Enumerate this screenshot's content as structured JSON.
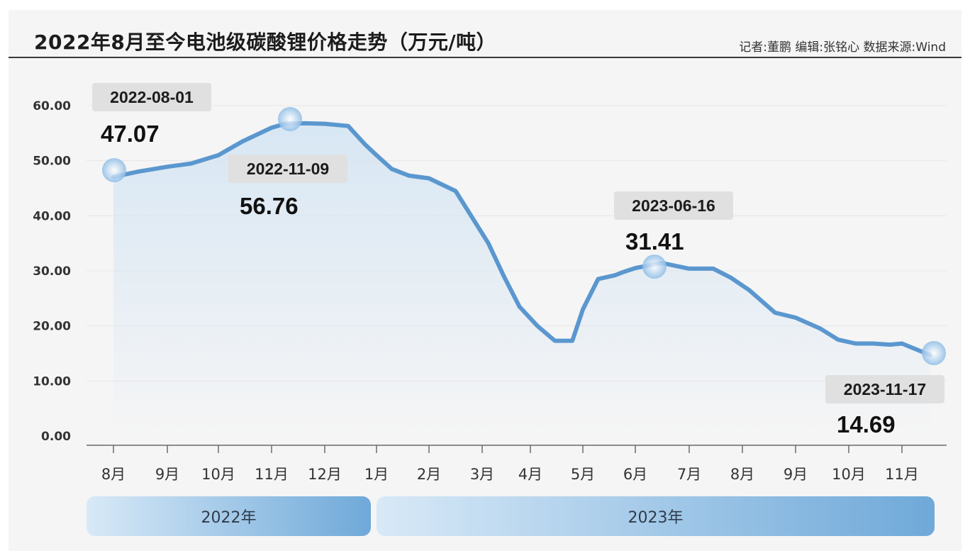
{
  "title": "2022年8月至今电池级碳酸锂价格走势（万元/吨）",
  "credit": "记者:董鹏  编辑:张铭心  数据来源:Wind",
  "colors": {
    "line": "#5b97cf",
    "area_top": "#d6e6f4",
    "marker": "#8fbde6",
    "callout_bg": "#e0e0e0",
    "band_light": "#d8e9f7",
    "band_dark": "#6fa9d9",
    "grid": "#e6e6e6",
    "axis": "#6b6b6b"
  },
  "chart_data": {
    "type": "line",
    "ylim": [
      0,
      60
    ],
    "y_ticks": [
      "0.00",
      "10.00",
      "20.00",
      "30.00",
      "40.00",
      "50.00",
      "60.00"
    ],
    "x_ticks": [
      "8月",
      "9月",
      "10月",
      "11月",
      "12月",
      "1月",
      "2月",
      "3月",
      "4月",
      "5月",
      "6月",
      "7月",
      "8月",
      "9月",
      "10月",
      "11月"
    ],
    "year_bands": [
      "2022年",
      "2023年"
    ],
    "grid": true,
    "series": [
      {
        "x": [
          "2022-08-01",
          "2022-08-15",
          "2022-09-01",
          "2022-09-15",
          "2022-10-01",
          "2022-10-15",
          "2022-11-01",
          "2022-11-09",
          "2022-11-20",
          "2022-12-01",
          "2022-12-15",
          "2022-12-25",
          "2023-01-01",
          "2023-01-10",
          "2023-01-20",
          "2023-02-01",
          "2023-02-15",
          "2023-02-25",
          "2023-03-05",
          "2023-03-15",
          "2023-03-25",
          "2023-04-05",
          "2023-04-15",
          "2023-04-25",
          "2023-05-01",
          "2023-05-10",
          "2023-05-20",
          "2023-05-25",
          "2023-06-01",
          "2023-06-16",
          "2023-06-25",
          "2023-07-01",
          "2023-07-15",
          "2023-07-25",
          "2023-08-05",
          "2023-08-20",
          "2023-09-01",
          "2023-09-15",
          "2023-09-25",
          "2023-10-05",
          "2023-10-15",
          "2023-10-25",
          "2023-11-01",
          "2023-11-17"
        ],
        "y": [
          47.07,
          48.0,
          48.9,
          49.5,
          51.0,
          53.5,
          56.0,
          56.76,
          56.8,
          56.7,
          56.3,
          53.0,
          51.0,
          48.5,
          47.3,
          46.8,
          44.5,
          39.0,
          35.0,
          29.0,
          23.5,
          20.0,
          17.3,
          17.3,
          23.0,
          28.5,
          29.2,
          29.8,
          30.5,
          31.41,
          30.8,
          30.4,
          30.4,
          28.8,
          26.5,
          22.4,
          21.5,
          19.5,
          17.5,
          16.8,
          16.8,
          16.6,
          16.8,
          14.69
        ]
      }
    ],
    "callouts": [
      {
        "date": "2022-08-01",
        "value": "47.07"
      },
      {
        "date": "2022-11-09",
        "value": "56.76"
      },
      {
        "date": "2023-06-16",
        "value": "31.41"
      },
      {
        "date": "2023-11-17",
        "value": "14.69"
      }
    ]
  }
}
